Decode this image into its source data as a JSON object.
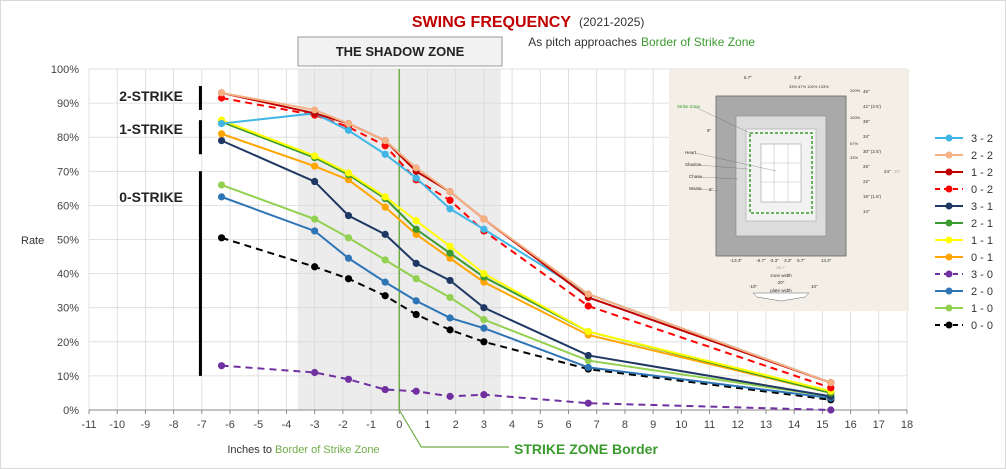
{
  "chart_data": {
    "type": "line",
    "title": "SWING FREQUENCY",
    "title_years": "(2021-2025)",
    "subtitle_prefix": "As pitch approaches",
    "subtitle_highlight": "Border of Strike Zone",
    "xlabel_prefix": "Inches to",
    "xlabel_highlight": "Border of Strike Zone",
    "ylabel": "Rate",
    "xlim": [
      -11,
      18
    ],
    "ylim": [
      0,
      100
    ],
    "x_ticks": [
      "-11",
      "-10",
      "-9",
      "-8",
      "-7",
      "-6",
      "-5",
      "-4",
      "-3",
      "-2",
      "-1",
      "0",
      "1",
      "2",
      "3",
      "4",
      "5",
      "6",
      "7",
      "8",
      "9",
      "10",
      "11",
      "12",
      "13",
      "14",
      "15",
      "16",
      "17",
      "18"
    ],
    "y_ticks": [
      "0%",
      "10%",
      "20%",
      "30%",
      "40%",
      "50%",
      "60%",
      "70%",
      "80%",
      "90%",
      "100%"
    ],
    "shadow_zone": {
      "label": "THE SHADOW ZONE",
      "x_start": -3.6,
      "x_end": 3.6
    },
    "border_label": "STRIKE ZONE Border",
    "border_x": 0,
    "count_groups": [
      {
        "label": "2-STRIKE",
        "y_top": 95,
        "y_bottom": 88
      },
      {
        "label": "1-STRIKE",
        "y_top": 85,
        "y_bottom": 75
      },
      {
        "label": "0-STRIKE",
        "y_top": 70,
        "y_bottom": 10
      }
    ],
    "colors": {
      "strike_zone_green": "#70ad47",
      "title_red": "#c00000",
      "shadow_fill": "#ececec"
    },
    "series": [
      {
        "name": "3 - 2",
        "color": "#41b6e6",
        "dashed": false,
        "x": [
          -6.3,
          -3,
          -1.8,
          -0.5,
          0.6,
          1.8,
          3,
          6.7,
          15.3
        ],
        "values": [
          84,
          87,
          82,
          75,
          68,
          59,
          53,
          34,
          8
        ]
      },
      {
        "name": "2 - 2",
        "color": "#f4b183",
        "dashed": false,
        "x": [
          -6.3,
          -3,
          -1.8,
          -0.5,
          0.6,
          1.8,
          3,
          6.7,
          15.3
        ],
        "values": [
          93,
          88,
          84,
          79,
          71,
          64,
          56,
          34,
          8
        ]
      },
      {
        "name": "1 - 2",
        "color": "#c00000",
        "dashed": false,
        "x": [
          -6.3,
          -3,
          -1.8,
          -0.5,
          0.6,
          1.8,
          3,
          6.7,
          15.3
        ],
        "values": [
          93,
          87,
          84,
          79,
          70,
          64,
          56,
          33,
          8
        ]
      },
      {
        "name": "0 - 2",
        "color": "#ff0000",
        "dashed": true,
        "x": [
          -6.3,
          -3,
          -1.8,
          -0.5,
          0.6,
          1.8,
          3,
          6.7,
          15.3
        ],
        "values": [
          91.5,
          86.5,
          83,
          77.5,
          67.5,
          61.5,
          52.5,
          30.5,
          6.5
        ]
      },
      {
        "name": "3 - 1",
        "color": "#1f3864",
        "dashed": false,
        "x": [
          -6.3,
          -3,
          -1.8,
          -0.5,
          0.6,
          1.8,
          3,
          6.7,
          15.3
        ],
        "values": [
          79,
          67,
          57,
          51.5,
          43,
          38,
          30,
          16,
          4
        ]
      },
      {
        "name": "2 - 1",
        "color": "#3b9b2e",
        "dashed": false,
        "x": [
          -6.3,
          -3,
          -1.8,
          -0.5,
          0.6,
          1.8,
          3,
          6.7,
          15.3
        ],
        "values": [
          84.5,
          74,
          69,
          62,
          53,
          46,
          39,
          23,
          5
        ]
      },
      {
        "name": "1 - 1",
        "color": "#ffff00",
        "dashed": false,
        "x": [
          -6.3,
          -3,
          -1.8,
          -0.5,
          0.6,
          1.8,
          3,
          6.7,
          15.3
        ],
        "values": [
          85,
          74.5,
          69.5,
          62.5,
          55.5,
          48,
          40,
          23,
          5.5
        ]
      },
      {
        "name": "0 - 1",
        "color": "#ffa500",
        "dashed": false,
        "x": [
          -6.3,
          -3,
          -1.8,
          -0.5,
          0.6,
          1.8,
          3,
          6.7,
          15.3
        ],
        "values": [
          81,
          71.5,
          67.5,
          59.5,
          51.5,
          44.5,
          37.5,
          22,
          5
        ]
      },
      {
        "name": "3 - 0",
        "color": "#7030a0",
        "dashed": true,
        "x": [
          -6.3,
          -3,
          -1.8,
          -0.5,
          0.6,
          1.8,
          3,
          6.7,
          15.3
        ],
        "values": [
          13,
          11,
          9,
          6,
          5.5,
          4,
          4.5,
          2,
          0
        ]
      },
      {
        "name": "2 - 0",
        "color": "#2e75b6",
        "dashed": false,
        "x": [
          -6.3,
          -3,
          -1.8,
          -0.5,
          0.6,
          1.8,
          3,
          6.7,
          15.3
        ],
        "values": [
          62.5,
          52.5,
          44.5,
          37.5,
          32,
          27,
          24,
          12.5,
          3.5
        ]
      },
      {
        "name": "1 - 0",
        "color": "#92d050",
        "dashed": false,
        "x": [
          -6.3,
          -3,
          -1.8,
          -0.5,
          0.6,
          1.8,
          3,
          6.7,
          15.3
        ],
        "values": [
          66,
          56,
          50.5,
          44,
          38.5,
          33,
          26.5,
          14.5,
          4
        ]
      },
      {
        "name": "0 - 0",
        "color": "#000000",
        "dashed": true,
        "x": [
          -6.3,
          -3,
          -1.8,
          -0.5,
          0.6,
          1.8,
          3,
          6.7,
          15.3
        ],
        "values": [
          50.5,
          42,
          38.5,
          33.5,
          28,
          23.5,
          20,
          12,
          3
        ]
      }
    ],
    "inset_diagram": {
      "zone_labels": [
        "Strike Zone",
        "Heart",
        "Shadow",
        "Chase",
        "Waste"
      ],
      "top_labels": [
        "6.7\"",
        "3.3\""
      ],
      "top_pct": "33%  67%  100%  133%",
      "right_pct": [
        "100%",
        "67%",
        "33%",
        "200%"
      ],
      "right_inches": [
        "46\"",
        "42\" (3.5')",
        "38\"",
        "34\"",
        "30\" (2.5')",
        "26\"",
        "22\"",
        "18\" (1.5')",
        "14\""
      ],
      "right_side_labels": [
        "24\"",
        "30\""
      ],
      "left_labels": [
        "9\"",
        "6\""
      ],
      "bottom_ticks": [
        "-13.3\"",
        "-6.7\"",
        "-3.3\"",
        "3.3\"",
        "6.7\"",
        "13.3\""
      ],
      "bottom_small": "26.7\"",
      "zone_width_label": "zone width",
      "zone_width_value": "20\"",
      "plate_width_label": "plate width",
      "plate_width_value": "17\"",
      "side_dims": [
        "-10\"",
        "10\""
      ]
    }
  }
}
